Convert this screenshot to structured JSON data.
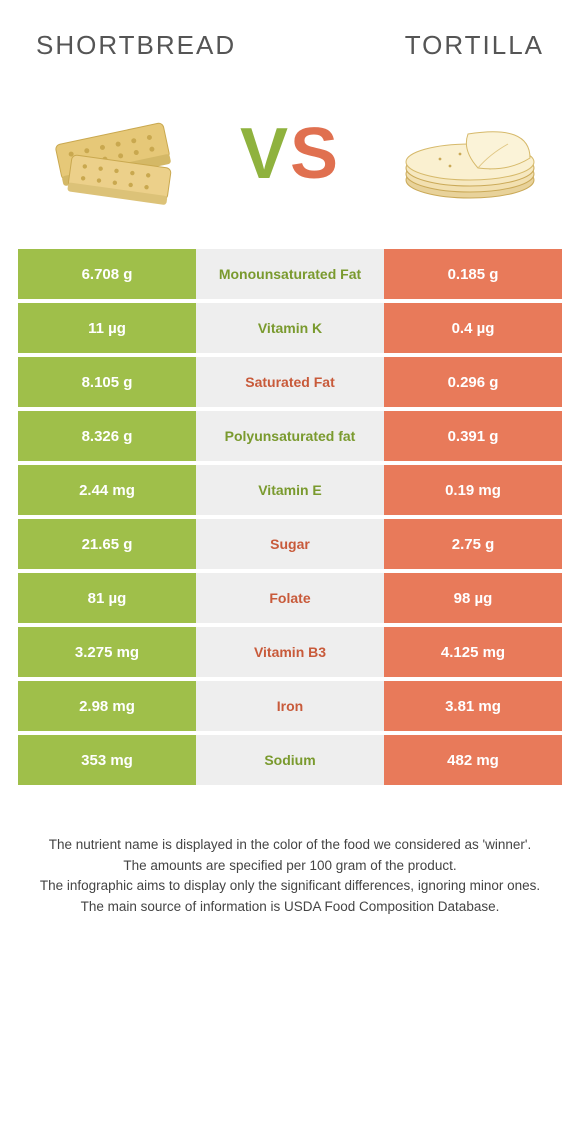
{
  "colors": {
    "left_bg": "#9fbf4a",
    "right_bg": "#e87a5a",
    "mid_bg": "#eeeeee",
    "left_text": "#7a9a2e",
    "right_text": "#c85a3a",
    "cell_value_text": "#ffffff",
    "page_bg": "#ffffff"
  },
  "header": {
    "left_title": "SHORTBREAD",
    "right_title": "TORTILLA",
    "vs_v": "V",
    "vs_s": "S"
  },
  "rows": [
    {
      "left": "6.708 g",
      "label": "Monounsaturated Fat",
      "right": "0.185 g",
      "winner": "left"
    },
    {
      "left": "11 µg",
      "label": "Vitamin K",
      "right": "0.4 µg",
      "winner": "left"
    },
    {
      "left": "8.105 g",
      "label": "Saturated Fat",
      "right": "0.296 g",
      "winner": "right"
    },
    {
      "left": "8.326 g",
      "label": "Polyunsaturated fat",
      "right": "0.391 g",
      "winner": "left"
    },
    {
      "left": "2.44 mg",
      "label": "Vitamin E",
      "right": "0.19 mg",
      "winner": "left"
    },
    {
      "left": "21.65 g",
      "label": "Sugar",
      "right": "2.75 g",
      "winner": "right"
    },
    {
      "left": "81 µg",
      "label": "Folate",
      "right": "98 µg",
      "winner": "right"
    },
    {
      "left": "3.275 mg",
      "label": "Vitamin B3",
      "right": "4.125 mg",
      "winner": "right"
    },
    {
      "left": "2.98 mg",
      "label": "Iron",
      "right": "3.81 mg",
      "winner": "right"
    },
    {
      "left": "353 mg",
      "label": "Sodium",
      "right": "482 mg",
      "winner": "left"
    }
  ],
  "footer": {
    "line1": "The nutrient name is displayed in the color of the food we considered as 'winner'.",
    "line2": "The amounts are specified per 100 gram of the product.",
    "line3": "The infographic aims to display only the significant differences, ignoring minor ones.",
    "line4": "The main source of information is USDA Food Composition Database."
  }
}
